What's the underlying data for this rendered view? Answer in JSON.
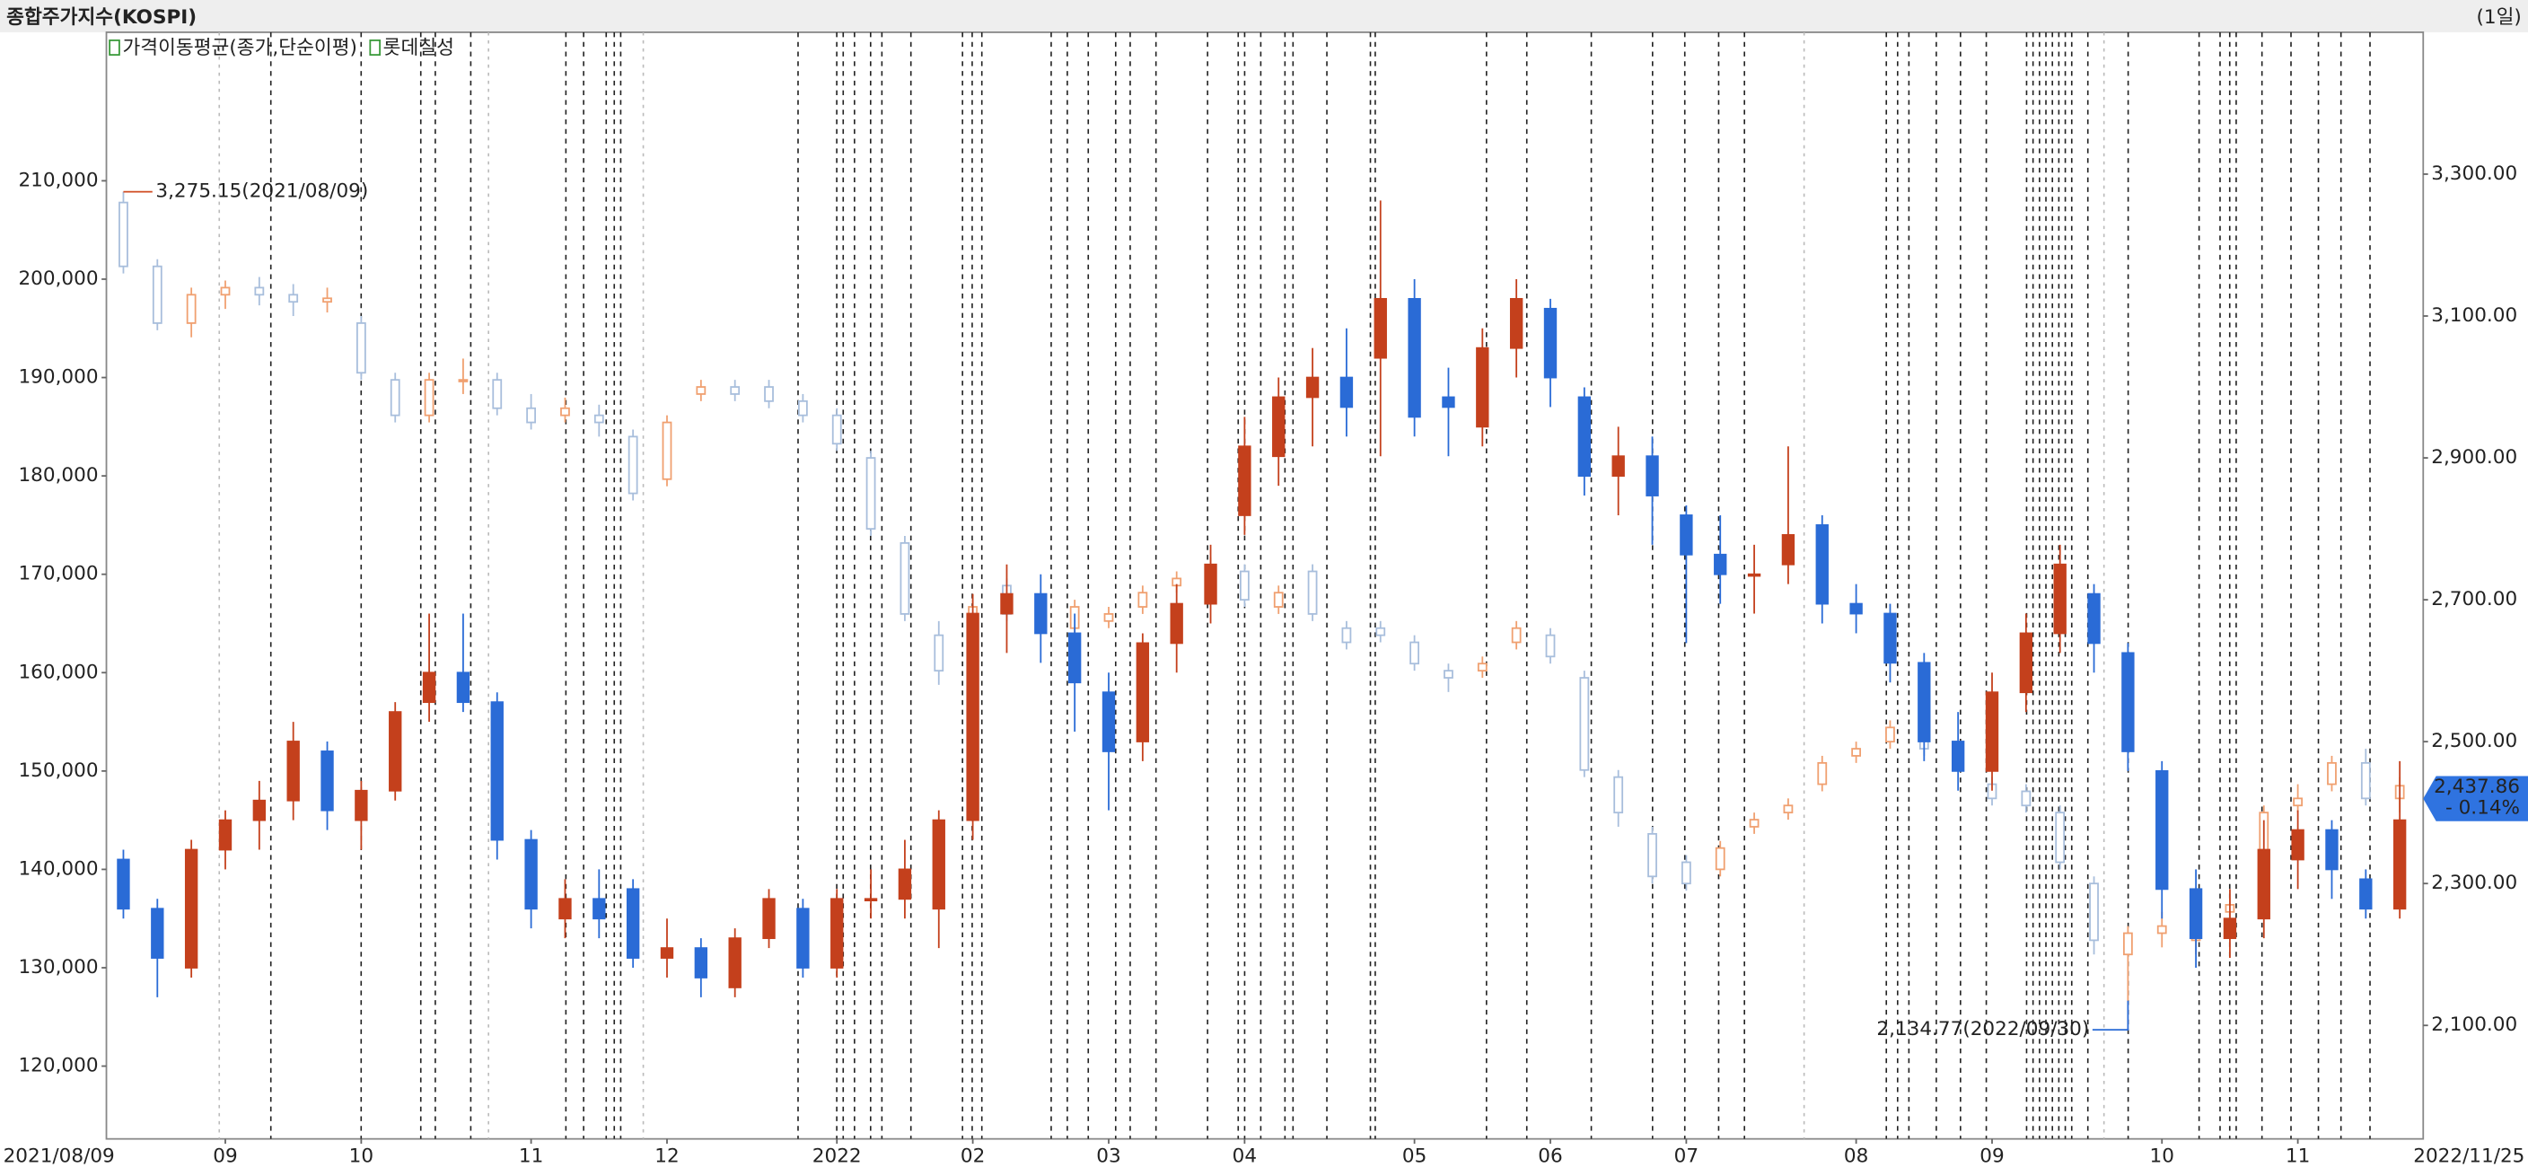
{
  "chart_data": {
    "type": "candlestick",
    "title": "종합주가지수(KOSPI)",
    "period": "(1일)",
    "overlays": [
      {
        "name": "가격이동평균(종가,단순이평)"
      }
    ],
    "categories": [
      "2021/08/09",
      null,
      null,
      "09",
      null,
      null,
      null,
      "10",
      null,
      null,
      null,
      null,
      "11",
      null,
      null,
      null,
      "12",
      null,
      null,
      null,
      null,
      "2022",
      null,
      null,
      null,
      "02",
      null,
      null,
      null,
      "03",
      null,
      null,
      null,
      "04",
      null,
      null,
      null,
      null,
      "05",
      null,
      null,
      null,
      "06",
      null,
      null,
      null,
      "07",
      null,
      null,
      null,
      null,
      "08",
      null,
      null,
      null,
      "09",
      null,
      null,
      null,
      null,
      "10",
      null,
      null,
      null,
      "11",
      null,
      null,
      "2022/11/25"
    ],
    "ylim": [
      112600,
      225100
    ],
    "yticks": [
      {
        "value": 120000,
        "label": "120,000"
      },
      {
        "value": 130000,
        "label": "130,000"
      },
      {
        "value": 140000,
        "label": "140,000"
      },
      {
        "value": 150000,
        "label": "150,000"
      },
      {
        "value": 160000,
        "label": "160,000"
      },
      {
        "value": 170000,
        "label": "170,000"
      },
      {
        "value": 180000,
        "label": "180,000"
      },
      {
        "value": 190000,
        "label": "190,000"
      },
      {
        "value": 200000,
        "label": "200,000"
      },
      {
        "value": 210000,
        "label": "210,000"
      }
    ],
    "y2lim": [
      1940,
      3500
    ],
    "y2ticks": [
      {
        "value": 2100,
        "label": "2,100.00"
      },
      {
        "value": 2300,
        "label": "2,300.00"
      },
      {
        "value": 2500,
        "label": "2,500.00"
      },
      {
        "value": 2700,
        "label": "2,700.00"
      },
      {
        "value": 2900,
        "label": "2,900.00"
      },
      {
        "value": 3100,
        "label": "3,100.00"
      },
      {
        "value": 3300,
        "label": "3,300.00"
      }
    ],
    "series": [
      {
        "axis": "y2",
        "up_color": "#f0a070",
        "down_color": "#a8bedc",
        "values": [
          [
            3260,
            3275.15,
            3160,
            3170
          ],
          [
            3170,
            3180,
            3080,
            3090
          ],
          [
            3090,
            3140,
            3070,
            3130
          ],
          [
            3130,
            3150,
            3110,
            3140
          ],
          [
            3140,
            3155,
            3115,
            3130
          ],
          [
            3130,
            3145,
            3100,
            3120
          ],
          [
            3120,
            3140,
            3105,
            3125
          ],
          [
            3090,
            3100,
            3010,
            3020
          ],
          [
            3010,
            3020,
            2950,
            2960
          ],
          [
            2960,
            3020,
            2950,
            3010
          ],
          [
            3010,
            3040,
            2990,
            3010
          ],
          [
            3010,
            3020,
            2960,
            2970
          ],
          [
            2970,
            2990,
            2940,
            2950
          ],
          [
            2960,
            2985,
            2950,
            2970
          ],
          [
            2960,
            2975,
            2930,
            2950
          ],
          [
            2930,
            2940,
            2840,
            2850
          ],
          [
            2870,
            2960,
            2860,
            2950
          ],
          [
            2990,
            3010,
            2980,
            3000
          ],
          [
            3000,
            3010,
            2980,
            2990
          ],
          [
            3000,
            3010,
            2970,
            2980
          ],
          [
            2980,
            2990,
            2950,
            2960
          ],
          [
            2960,
            2970,
            2910,
            2920
          ],
          [
            2900,
            2910,
            2790,
            2800
          ],
          [
            2780,
            2790,
            2670,
            2680
          ],
          [
            2650,
            2670,
            2580,
            2600
          ],
          [
            2650,
            2700,
            2640,
            2690
          ],
          [
            2720,
            2730,
            2670,
            2680
          ],
          [
            2690,
            2700,
            2670,
            2690
          ],
          [
            2660,
            2700,
            2650,
            2690
          ],
          [
            2670,
            2690,
            2660,
            2680
          ],
          [
            2690,
            2720,
            2680,
            2710
          ],
          [
            2720,
            2740,
            2710,
            2730
          ],
          [
            2740,
            2760,
            2730,
            2740
          ],
          [
            2740,
            2750,
            2690,
            2700
          ],
          [
            2690,
            2720,
            2680,
            2710
          ],
          [
            2740,
            2750,
            2670,
            2680
          ],
          [
            2660,
            2670,
            2630,
            2640
          ],
          [
            2660,
            2670,
            2640,
            2650
          ],
          [
            2640,
            2650,
            2600,
            2610
          ],
          [
            2600,
            2610,
            2570,
            2590
          ],
          [
            2600,
            2620,
            2590,
            2610
          ],
          [
            2640,
            2670,
            2630,
            2660
          ],
          [
            2650,
            2660,
            2610,
            2620
          ],
          [
            2590,
            2600,
            2450,
            2460
          ],
          [
            2450,
            2460,
            2380,
            2400
          ],
          [
            2370,
            2380,
            2300,
            2310
          ],
          [
            2330,
            2340,
            2290,
            2300
          ],
          [
            2320,
            2360,
            2310,
            2350
          ],
          [
            2380,
            2400,
            2370,
            2390
          ],
          [
            2400,
            2420,
            2390,
            2410
          ],
          [
            2440,
            2480,
            2430,
            2470
          ],
          [
            2480,
            2500,
            2470,
            2490
          ],
          [
            2500,
            2530,
            2490,
            2520
          ],
          [
            2530,
            2540,
            2480,
            2490
          ],
          [
            2490,
            2500,
            2460,
            2470
          ],
          [
            2440,
            2450,
            2410,
            2420
          ],
          [
            2430,
            2440,
            2400,
            2410
          ],
          [
            2400,
            2410,
            2320,
            2330
          ],
          [
            2300,
            2310,
            2200,
            2220
          ],
          [
            2200,
            2240,
            2134.77,
            2230
          ],
          [
            2230,
            2260,
            2210,
            2240
          ],
          [
            2220,
            2250,
            2200,
            2240
          ],
          [
            2260,
            2280,
            2240,
            2270
          ],
          [
            2330,
            2410,
            2320,
            2400
          ],
          [
            2410,
            2440,
            2400,
            2420
          ],
          [
            2440,
            2480,
            2430,
            2470
          ],
          [
            2470,
            2490,
            2410,
            2420
          ],
          [
            2420,
            2450,
            2400,
            2437.86
          ]
        ]
      },
      {
        "name": "롯데칠성",
        "axis": "y",
        "up_color": "#c4401c",
        "down_color": "#2a6bd6",
        "values": [
          [
            141000,
            142000,
            135000,
            136000
          ],
          [
            136000,
            137000,
            127000,
            131000
          ],
          [
            130000,
            143000,
            129000,
            142000
          ],
          [
            142000,
            146000,
            140000,
            145000
          ],
          [
            145000,
            149000,
            142000,
            147000
          ],
          [
            147000,
            155000,
            145000,
            153000
          ],
          [
            152000,
            153000,
            144000,
            146000
          ],
          [
            145000,
            149000,
            142000,
            148000
          ],
          [
            148000,
            157000,
            147000,
            156000
          ],
          [
            157000,
            166000,
            155000,
            160000
          ],
          [
            160000,
            166000,
            156000,
            157000
          ],
          [
            157000,
            158000,
            141000,
            143000
          ],
          [
            143000,
            144000,
            134000,
            136000
          ],
          [
            135000,
            139000,
            133000,
            137000
          ],
          [
            137000,
            140000,
            133000,
            135000
          ],
          [
            138000,
            139000,
            130000,
            131000
          ],
          [
            131000,
            135000,
            129000,
            132000
          ],
          [
            132000,
            133000,
            127000,
            129000
          ],
          [
            128000,
            134000,
            127000,
            133000
          ],
          [
            133000,
            138000,
            132000,
            137000
          ],
          [
            136000,
            137000,
            129000,
            130000
          ],
          [
            130000,
            138000,
            129000,
            137000
          ],
          [
            137000,
            140000,
            135000,
            137000
          ],
          [
            137000,
            143000,
            135000,
            140000
          ],
          [
            136000,
            146000,
            132000,
            145000
          ],
          [
            145000,
            168000,
            143000,
            166000
          ],
          [
            166000,
            171000,
            162000,
            168000
          ],
          [
            168000,
            170000,
            161000,
            164000
          ],
          [
            164000,
            166000,
            154000,
            159000
          ],
          [
            158000,
            160000,
            146000,
            152000
          ],
          [
            153000,
            164000,
            151000,
            163000
          ],
          [
            163000,
            169000,
            160000,
            167000
          ],
          [
            167000,
            173000,
            165000,
            171000
          ],
          [
            176000,
            186000,
            174000,
            183000
          ],
          [
            182000,
            190000,
            179000,
            188000
          ],
          [
            188000,
            193000,
            183000,
            190000
          ],
          [
            190000,
            195000,
            184000,
            187000
          ],
          [
            192000,
            208000,
            182000,
            198000
          ],
          [
            198000,
            200000,
            184000,
            186000
          ],
          [
            188000,
            191000,
            182000,
            187000
          ],
          [
            185000,
            195000,
            183000,
            193000
          ],
          [
            193000,
            200000,
            190000,
            198000
          ],
          [
            197000,
            198000,
            187000,
            190000
          ],
          [
            188000,
            189000,
            178000,
            180000
          ],
          [
            180000,
            185000,
            176000,
            182000
          ],
          [
            182000,
            184000,
            173000,
            178000
          ],
          [
            176000,
            177000,
            163000,
            172000
          ],
          [
            172000,
            176000,
            167000,
            170000
          ],
          [
            170000,
            173000,
            166000,
            170000
          ],
          [
            171000,
            183000,
            169000,
            174000
          ],
          [
            175000,
            176000,
            165000,
            167000
          ],
          [
            167000,
            169000,
            164000,
            166000
          ],
          [
            166000,
            167000,
            159000,
            161000
          ],
          [
            161000,
            162000,
            151000,
            153000
          ],
          [
            153000,
            156000,
            148000,
            150000
          ],
          [
            150000,
            160000,
            148000,
            158000
          ],
          [
            158000,
            166000,
            156000,
            164000
          ],
          [
            164000,
            173000,
            162000,
            171000
          ],
          [
            168000,
            169000,
            160000,
            163000
          ],
          [
            162000,
            163000,
            150000,
            152000
          ],
          [
            150000,
            151000,
            135000,
            138000
          ],
          [
            138000,
            140000,
            130000,
            133000
          ],
          [
            133000,
            138000,
            131000,
            135000
          ],
          [
            135000,
            145000,
            133000,
            142000
          ],
          [
            141000,
            146000,
            138000,
            144000
          ],
          [
            144000,
            145000,
            137000,
            140000
          ],
          [
            139000,
            140000,
            135000,
            136000
          ],
          [
            136000,
            151000,
            135000,
            145000
          ]
        ]
      }
    ],
    "annotations": [
      {
        "value": 3275.15,
        "label": "3,275.15(2021/08/09)",
        "color": "#d04a20"
      },
      {
        "value": 2134.77,
        "label": "2,134.77(2022/09/30)",
        "color": "#2a6bd6"
      }
    ],
    "last": {
      "value": 2437.86,
      "label": "2,437.86",
      "change": "- 0.14%",
      "color": "#2f73e0"
    }
  }
}
